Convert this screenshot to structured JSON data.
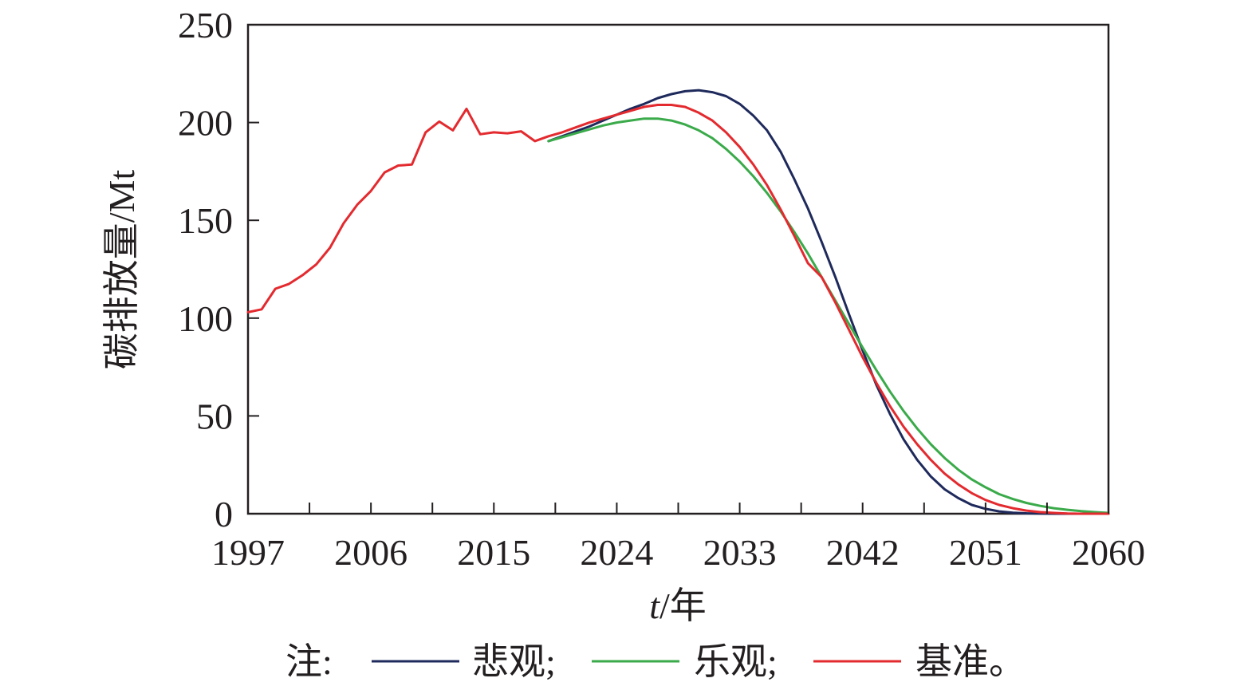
{
  "chart_data": {
    "type": "line",
    "xlabel_italic": "t",
    "xlabel_unit": "/年",
    "ylabel": "碳排放量/Mt",
    "xlim": [
      1997,
      2060
    ],
    "ylim": [
      0,
      250
    ],
    "xticks": [
      "1997",
      "2006",
      "2015",
      "2024",
      "2033",
      "2042",
      "2051",
      "2060"
    ],
    "yticks": [
      "0",
      "50",
      "100",
      "150",
      "200",
      "250"
    ],
    "grid": false,
    "legend_prefix": "注:",
    "series": [
      {
        "name": "悲观;",
        "color": "#1f2a5c",
        "points": [
          [
            2019,
            190.5
          ],
          [
            2020,
            193
          ],
          [
            2021,
            195.5
          ],
          [
            2022,
            198
          ],
          [
            2023,
            201
          ],
          [
            2024,
            204
          ],
          [
            2025,
            207
          ],
          [
            2026,
            209.5
          ],
          [
            2027,
            212.5
          ],
          [
            2028,
            214.5
          ],
          [
            2029,
            216
          ],
          [
            2030,
            216.5
          ],
          [
            2031,
            215.5
          ],
          [
            2032,
            213.5
          ],
          [
            2033,
            209.5
          ],
          [
            2034,
            203.5
          ],
          [
            2035,
            196
          ],
          [
            2036,
            185
          ],
          [
            2037,
            171
          ],
          [
            2038,
            156
          ],
          [
            2039,
            139
          ],
          [
            2040,
            121
          ],
          [
            2041,
            102
          ],
          [
            2042,
            83.5
          ],
          [
            2043,
            66
          ],
          [
            2044,
            51
          ],
          [
            2045,
            38
          ],
          [
            2046,
            27.5
          ],
          [
            2047,
            19
          ],
          [
            2048,
            12.5
          ],
          [
            2049,
            8
          ],
          [
            2050,
            4.5
          ],
          [
            2051,
            2.5
          ],
          [
            2052,
            1.2
          ],
          [
            2053,
            0.5
          ],
          [
            2054,
            0.2
          ],
          [
            2055,
            0.1
          ],
          [
            2056,
            0
          ],
          [
            2057,
            0
          ],
          [
            2058,
            0
          ],
          [
            2059,
            0
          ],
          [
            2060,
            0
          ]
        ]
      },
      {
        "name": "乐观;",
        "color": "#3aaa4a",
        "points": [
          [
            2019,
            190.5
          ],
          [
            2020,
            192.5
          ],
          [
            2021,
            194.5
          ],
          [
            2022,
            196.5
          ],
          [
            2023,
            198.5
          ],
          [
            2024,
            200
          ],
          [
            2025,
            201
          ],
          [
            2026,
            202
          ],
          [
            2027,
            202
          ],
          [
            2028,
            201
          ],
          [
            2029,
            199
          ],
          [
            2030,
            196
          ],
          [
            2031,
            192
          ],
          [
            2032,
            186.5
          ],
          [
            2033,
            180
          ],
          [
            2034,
            172.5
          ],
          [
            2035,
            164
          ],
          [
            2036,
            154.5
          ],
          [
            2037,
            144
          ],
          [
            2038,
            133
          ],
          [
            2039,
            121
          ],
          [
            2040,
            109
          ],
          [
            2041,
            97
          ],
          [
            2042,
            85
          ],
          [
            2043,
            73.5
          ],
          [
            2044,
            62.5
          ],
          [
            2045,
            52.5
          ],
          [
            2046,
            43.5
          ],
          [
            2047,
            35.5
          ],
          [
            2048,
            28.5
          ],
          [
            2049,
            22.5
          ],
          [
            2050,
            17.5
          ],
          [
            2051,
            13.5
          ],
          [
            2052,
            10
          ],
          [
            2053,
            7.5
          ],
          [
            2054,
            5.5
          ],
          [
            2055,
            4
          ],
          [
            2056,
            2.8
          ],
          [
            2057,
            2
          ],
          [
            2058,
            1.3
          ],
          [
            2059,
            0.8
          ],
          [
            2060,
            0.4
          ]
        ]
      },
      {
        "name": "基准。",
        "color": "#e32a2f",
        "points": [
          [
            1997,
            103
          ],
          [
            1998,
            104.5
          ],
          [
            1999,
            115
          ],
          [
            2000,
            117.5
          ],
          [
            2001,
            122
          ],
          [
            2002,
            127.5
          ],
          [
            2003,
            136
          ],
          [
            2004,
            148.5
          ],
          [
            2005,
            158
          ],
          [
            2006,
            165
          ],
          [
            2007,
            174.5
          ],
          [
            2008,
            178
          ],
          [
            2009,
            178.5
          ],
          [
            2010,
            195
          ],
          [
            2011,
            200.5
          ],
          [
            2012,
            196
          ],
          [
            2013,
            207
          ],
          [
            2014,
            194
          ],
          [
            2015,
            195
          ],
          [
            2016,
            194.5
          ],
          [
            2017,
            195.5
          ],
          [
            2018,
            190.5
          ],
          [
            2019,
            193
          ],
          [
            2020,
            195
          ],
          [
            2021,
            197.5
          ],
          [
            2022,
            200
          ],
          [
            2023,
            202
          ],
          [
            2024,
            204
          ],
          [
            2025,
            206
          ],
          [
            2026,
            208
          ],
          [
            2027,
            209
          ],
          [
            2028,
            209
          ],
          [
            2029,
            208
          ],
          [
            2030,
            205
          ],
          [
            2031,
            201
          ],
          [
            2032,
            195
          ],
          [
            2033,
            187.5
          ],
          [
            2034,
            178.5
          ],
          [
            2035,
            168
          ],
          [
            2036,
            155.5
          ],
          [
            2037,
            142
          ],
          [
            2038,
            128
          ],
          [
            2039,
            121
          ],
          [
            2040,
            108
          ],
          [
            2041,
            94
          ],
          [
            2042,
            80
          ],
          [
            2043,
            67
          ],
          [
            2044,
            55
          ],
          [
            2045,
            44.5
          ],
          [
            2046,
            35.5
          ],
          [
            2047,
            27.5
          ],
          [
            2048,
            20.5
          ],
          [
            2049,
            15
          ],
          [
            2050,
            10.5
          ],
          [
            2051,
            7
          ],
          [
            2052,
            4.5
          ],
          [
            2053,
            2.8
          ],
          [
            2054,
            1.6
          ],
          [
            2055,
            0.8
          ],
          [
            2056,
            0.4
          ],
          [
            2057,
            0.1
          ],
          [
            2058,
            0
          ],
          [
            2059,
            0
          ],
          [
            2060,
            0
          ]
        ]
      }
    ]
  }
}
